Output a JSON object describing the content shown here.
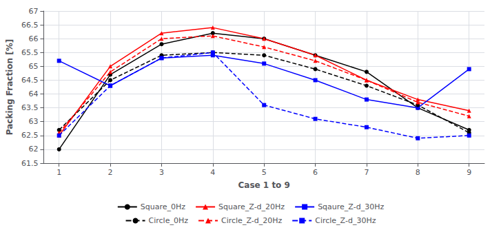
{
  "chart_data": {
    "type": "line",
    "x_label": "Case 1 to 9",
    "y_label": "Packing Fraction [%]",
    "x": [
      1,
      2,
      3,
      4,
      5,
      6,
      7,
      8,
      9
    ],
    "xlim": [
      0.7,
      9.3
    ],
    "xticks": [
      1,
      2,
      3,
      4,
      5,
      6,
      7,
      8,
      9
    ],
    "ylim": [
      61.5,
      67.0
    ],
    "yticks": [
      61.5,
      62,
      62.5,
      63,
      63.5,
      64,
      64.5,
      65,
      65.5,
      66,
      66.5,
      67
    ],
    "grid": true,
    "legend": "bottom",
    "series": [
      {
        "name": "Square_0Hz",
        "color": "#000000",
        "marker": "circle",
        "line_style": "solid",
        "values": [
          62.0,
          64.7,
          65.8,
          66.2,
          66.0,
          65.4,
          64.8,
          63.5,
          62.7
        ]
      },
      {
        "name": "Square_Z-d_20Hz",
        "color": "#ff0000",
        "marker": "triangle",
        "line_style": "solid",
        "values": [
          62.5,
          65.0,
          66.2,
          66.4,
          66.0,
          65.4,
          64.5,
          63.8,
          63.4
        ]
      },
      {
        "name": "Sqaure_Z-d_30Hz",
        "color": "#0000ff",
        "marker": "square",
        "line_style": "solid",
        "values": [
          65.2,
          64.3,
          65.3,
          65.4,
          65.1,
          64.5,
          63.8,
          63.5,
          64.9
        ]
      },
      {
        "name": "Circle_0Hz",
        "color": "#000000",
        "marker": "circle",
        "line_style": "dashed",
        "values": [
          62.7,
          64.5,
          65.4,
          65.5,
          65.4,
          64.9,
          64.3,
          63.6,
          62.6
        ]
      },
      {
        "name": "Circle_Z-d_20Hz",
        "color": "#ff0000",
        "marker": "triangle",
        "line_style": "dashed",
        "values": [
          62.6,
          64.8,
          66.0,
          66.1,
          65.7,
          65.2,
          64.5,
          63.7,
          63.2
        ]
      },
      {
        "name": "Circle_Z-d_30Hz",
        "color": "#0000ff",
        "marker": "square",
        "line_style": "dashed",
        "values": [
          62.5,
          64.3,
          65.3,
          65.5,
          63.6,
          63.1,
          62.8,
          62.4,
          62.5
        ]
      }
    ]
  }
}
